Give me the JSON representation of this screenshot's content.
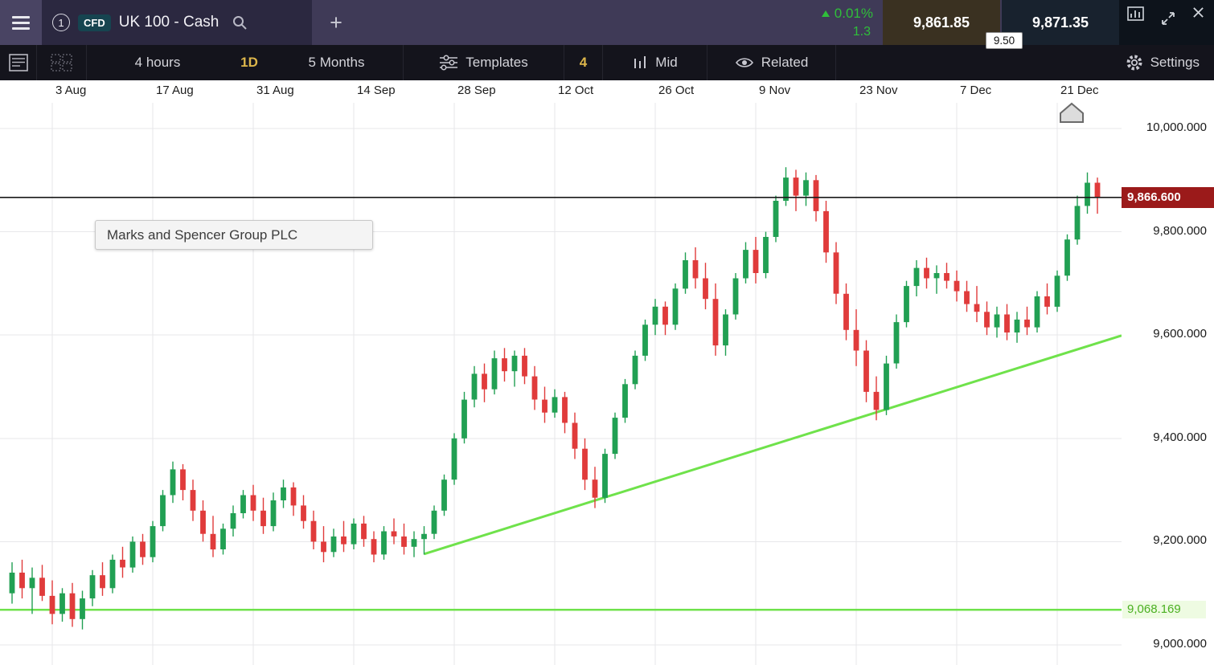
{
  "header": {
    "tab": {
      "number": "1",
      "instrument_type": "CFD",
      "title": "UK 100 - Cash"
    },
    "add_tab_label": "+",
    "change_percent": "0.01%",
    "change_value": "1.3",
    "sell_price": "9,861.85",
    "buy_price": "9,871.35",
    "spread": "9.50"
  },
  "toolbar": {
    "timeframe": "4 hours",
    "interval_badge": "1D",
    "range": "5 Months",
    "templates_label": "Templates",
    "count_badge": "4",
    "price_type": "Mid",
    "related_label": "Related",
    "settings_label": "Settings"
  },
  "tooltip": "Marks and Spencer Group PLC",
  "icons": [
    "menu",
    "search",
    "add-tab",
    "up-arrow",
    "chart-window",
    "expand",
    "close",
    "watchlist",
    "layout-grid",
    "templates-sliders",
    "candle-type",
    "related-eye",
    "settings-gear"
  ],
  "chart_data": {
    "type": "candlestick",
    "title": "UK 100 - Cash, 1D, 5 Months",
    "x_labels": [
      "3 Aug",
      "17 Aug",
      "31 Aug",
      "14 Sep",
      "28 Sep",
      "12 Oct",
      "26 Oct",
      "9 Nov",
      "23 Nov",
      "7 Dec",
      "21 Dec"
    ],
    "y_ticks": [
      "10,000.000",
      "9,800.000",
      "9,600.000",
      "9,400.000",
      "9,200.000",
      "9,000.000"
    ],
    "y_tick_values": [
      10000,
      9800,
      9600,
      9400,
      9200,
      9000
    ],
    "ylim": [
      8990,
      10095
    ],
    "grid": true,
    "current_price": 9866.6,
    "current_price_label": "9,866.600",
    "support_level": 9068.169,
    "support_label": "9,068.169",
    "first_label_candle_index": 4,
    "candles_per_label": 10,
    "trendline": {
      "start_index": 41,
      "start_price": 9176,
      "end_price": 9599
    },
    "marker": {
      "x": 1333,
      "y": 29
    },
    "colors": {
      "up": "#21a053",
      "down": "#e03b3b",
      "trend": "#6fe24b",
      "support": "#6fe24b",
      "current_line": "#1a1a1a",
      "current_tag_bg": "#9b1a1a",
      "grid": "#e7e7ea"
    },
    "candles": [
      [
        9100,
        9160,
        9080,
        9140
      ],
      [
        9140,
        9165,
        9090,
        9110
      ],
      [
        9110,
        9150,
        9060,
        9130
      ],
      [
        9130,
        9155,
        9085,
        9095
      ],
      [
        9095,
        9125,
        9040,
        9060
      ],
      [
        9060,
        9110,
        9045,
        9100
      ],
      [
        9100,
        9120,
        9035,
        9050
      ],
      [
        9050,
        9105,
        9030,
        9090
      ],
      [
        9090,
        9145,
        9075,
        9135
      ],
      [
        9135,
        9160,
        9095,
        9110
      ],
      [
        9110,
        9175,
        9100,
        9165
      ],
      [
        9165,
        9190,
        9130,
        9150
      ],
      [
        9150,
        9210,
        9140,
        9200
      ],
      [
        9200,
        9215,
        9155,
        9170
      ],
      [
        9170,
        9240,
        9160,
        9230
      ],
      [
        9230,
        9300,
        9220,
        9290
      ],
      [
        9290,
        9355,
        9275,
        9340
      ],
      [
        9340,
        9350,
        9280,
        9300
      ],
      [
        9300,
        9320,
        9240,
        9260
      ],
      [
        9260,
        9280,
        9200,
        9215
      ],
      [
        9215,
        9250,
        9170,
        9185
      ],
      [
        9185,
        9235,
        9175,
        9225
      ],
      [
        9225,
        9270,
        9210,
        9255
      ],
      [
        9255,
        9300,
        9245,
        9290
      ],
      [
        9290,
        9310,
        9240,
        9260
      ],
      [
        9260,
        9285,
        9215,
        9230
      ],
      [
        9230,
        9295,
        9220,
        9280
      ],
      [
        9280,
        9320,
        9265,
        9305
      ],
      [
        9305,
        9315,
        9250,
        9270
      ],
      [
        9270,
        9290,
        9225,
        9240
      ],
      [
        9240,
        9260,
        9185,
        9200
      ],
      [
        9200,
        9230,
        9160,
        9180
      ],
      [
        9180,
        9225,
        9170,
        9210
      ],
      [
        9210,
        9240,
        9180,
        9195
      ],
      [
        9195,
        9245,
        9185,
        9235
      ],
      [
        9235,
        9250,
        9190,
        9205
      ],
      [
        9205,
        9220,
        9160,
        9175
      ],
      [
        9175,
        9230,
        9165,
        9220
      ],
      [
        9220,
        9245,
        9195,
        9210
      ],
      [
        9210,
        9235,
        9175,
        9190
      ],
      [
        9190,
        9220,
        9170,
        9205
      ],
      [
        9205,
        9230,
        9175,
        9215
      ],
      [
        9215,
        9270,
        9205,
        9260
      ],
      [
        9260,
        9330,
        9250,
        9320
      ],
      [
        9320,
        9410,
        9310,
        9400
      ],
      [
        9400,
        9490,
        9390,
        9475
      ],
      [
        9475,
        9540,
        9460,
        9525
      ],
      [
        9525,
        9545,
        9470,
        9495
      ],
      [
        9495,
        9570,
        9485,
        9555
      ],
      [
        9555,
        9575,
        9510,
        9530
      ],
      [
        9530,
        9570,
        9500,
        9560
      ],
      [
        9560,
        9575,
        9505,
        9520
      ],
      [
        9520,
        9540,
        9455,
        9475
      ],
      [
        9475,
        9500,
        9430,
        9450
      ],
      [
        9450,
        9495,
        9440,
        9480
      ],
      [
        9480,
        9490,
        9410,
        9430
      ],
      [
        9430,
        9450,
        9360,
        9380
      ],
      [
        9380,
        9400,
        9300,
        9320
      ],
      [
        9320,
        9345,
        9265,
        9285
      ],
      [
        9285,
        9380,
        9275,
        9370
      ],
      [
        9370,
        9450,
        9360,
        9440
      ],
      [
        9440,
        9515,
        9430,
        9505
      ],
      [
        9505,
        9570,
        9495,
        9560
      ],
      [
        9560,
        9630,
        9550,
        9620
      ],
      [
        9620,
        9670,
        9600,
        9655
      ],
      [
        9655,
        9665,
        9600,
        9620
      ],
      [
        9620,
        9700,
        9610,
        9690
      ],
      [
        9690,
        9760,
        9680,
        9745
      ],
      [
        9745,
        9770,
        9690,
        9710
      ],
      [
        9710,
        9740,
        9650,
        9670
      ],
      [
        9670,
        9700,
        9560,
        9580
      ],
      [
        9580,
        9650,
        9560,
        9640
      ],
      [
        9640,
        9720,
        9630,
        9710
      ],
      [
        9710,
        9780,
        9700,
        9765
      ],
      [
        9765,
        9790,
        9700,
        9720
      ],
      [
        9720,
        9800,
        9710,
        9790
      ],
      [
        9790,
        9870,
        9780,
        9860
      ],
      [
        9860,
        9925,
        9850,
        9905
      ],
      [
        9905,
        9920,
        9840,
        9870
      ],
      [
        9870,
        9915,
        9850,
        9900
      ],
      [
        9900,
        9910,
        9820,
        9840
      ],
      [
        9840,
        9860,
        9740,
        9760
      ],
      [
        9760,
        9780,
        9660,
        9680
      ],
      [
        9680,
        9700,
        9590,
        9610
      ],
      [
        9610,
        9650,
        9540,
        9570
      ],
      [
        9570,
        9590,
        9470,
        9490
      ],
      [
        9490,
        9520,
        9435,
        9455
      ],
      [
        9455,
        9560,
        9445,
        9545
      ],
      [
        9545,
        9640,
        9535,
        9625
      ],
      [
        9625,
        9705,
        9615,
        9695
      ],
      [
        9695,
        9745,
        9675,
        9730
      ],
      [
        9730,
        9750,
        9690,
        9710
      ],
      [
        9710,
        9735,
        9680,
        9720
      ],
      [
        9720,
        9740,
        9690,
        9705
      ],
      [
        9705,
        9725,
        9665,
        9685
      ],
      [
        9685,
        9705,
        9645,
        9660
      ],
      [
        9660,
        9695,
        9625,
        9645
      ],
      [
        9645,
        9665,
        9600,
        9615
      ],
      [
        9615,
        9655,
        9595,
        9640
      ],
      [
        9640,
        9660,
        9590,
        9605
      ],
      [
        9605,
        9645,
        9585,
        9630
      ],
      [
        9630,
        9655,
        9600,
        9615
      ],
      [
        9615,
        9685,
        9605,
        9675
      ],
      [
        9675,
        9700,
        9640,
        9655
      ],
      [
        9655,
        9725,
        9645,
        9715
      ],
      [
        9715,
        9795,
        9705,
        9785
      ],
      [
        9785,
        9870,
        9775,
        9850
      ],
      [
        9850,
        9915,
        9835,
        9895
      ],
      [
        9895,
        9905,
        9835,
        9866.6
      ]
    ]
  }
}
